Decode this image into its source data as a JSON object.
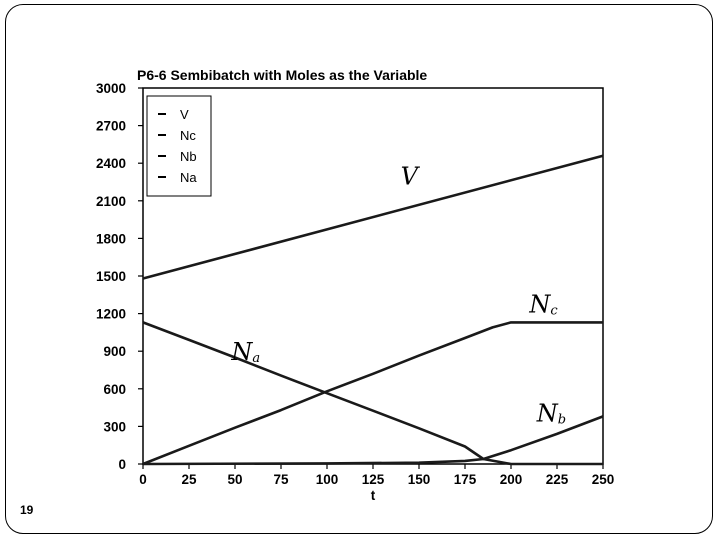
{
  "slide": {
    "number": "19"
  },
  "chart_data": {
    "type": "line",
    "title": "P6-6 Sembibatch with Moles as the Variable",
    "xlabel": "t",
    "ylabel": "",
    "xlim": [
      0,
      250
    ],
    "ylim": [
      0,
      3000
    ],
    "xticks": [
      "0",
      "25",
      "50",
      "75",
      "100",
      "125",
      "150",
      "175",
      "200",
      "225",
      "250"
    ],
    "yticks": [
      "0",
      "300",
      "600",
      "900",
      "1200",
      "1500",
      "1800",
      "2100",
      "2400",
      "2700",
      "3000"
    ],
    "grid": false,
    "legend_position": "top-left",
    "series": [
      {
        "name": "V",
        "x": [
          0,
          250
        ],
        "y": [
          1480,
          2460
        ]
      },
      {
        "name": "Nc",
        "x": [
          0,
          25,
          50,
          75,
          100,
          125,
          150,
          175,
          190,
          200,
          225,
          250
        ],
        "y": [
          0,
          145,
          290,
          430,
          580,
          720,
          865,
          1005,
          1090,
          1130,
          1130,
          1130
        ]
      },
      {
        "name": "Nb",
        "x": [
          0,
          100,
          150,
          175,
          185,
          200,
          225,
          250
        ],
        "y": [
          0,
          5,
          10,
          25,
          40,
          110,
          240,
          380
        ]
      },
      {
        "name": "Na",
        "x": [
          0,
          25,
          50,
          75,
          100,
          125,
          150,
          175,
          185,
          200,
          225,
          250
        ],
        "y": [
          1130,
          990,
          850,
          705,
          565,
          425,
          285,
          140,
          40,
          0,
          0,
          0
        ]
      }
    ],
    "annotations": [
      {
        "text": "V",
        "x": 140,
        "y": 2230
      },
      {
        "text": "Nc",
        "x": 210,
        "y": 1210
      },
      {
        "text": "Nb",
        "x": 214,
        "y": 340
      },
      {
        "text": "Na",
        "x": 48,
        "y": 830
      }
    ]
  }
}
